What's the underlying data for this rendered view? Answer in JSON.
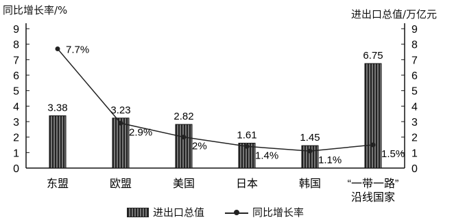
{
  "chart_data": {
    "type": "bar",
    "left_axis_title": "同比增长率/%",
    "right_axis_title": "进出口总值/万亿元",
    "categories": [
      "东盟",
      "欧盟",
      "美国",
      "日本",
      "韩国",
      "“一带一路”\n沿线国家"
    ],
    "series": [
      {
        "name": "进出口总值",
        "type": "bar",
        "axis": "right",
        "values": [
          3.38,
          3.23,
          2.82,
          1.61,
          1.45,
          6.75
        ],
        "labels": [
          "3.38",
          "3.23",
          "2.82",
          "1.61",
          "1.45",
          "6.75"
        ]
      },
      {
        "name": "同比增长率",
        "type": "line",
        "axis": "left",
        "values": [
          7.7,
          2.9,
          2.0,
          1.4,
          1.1,
          1.5
        ],
        "labels": [
          "7.7%",
          "2.9%",
          "2%",
          "1.4%",
          "1.1%",
          "1.5%"
        ]
      }
    ],
    "ylim_left": [
      0,
      9
    ],
    "ylim_right": [
      0,
      9
    ],
    "yticks": [
      0,
      1,
      2,
      3,
      4,
      5,
      6,
      7,
      8,
      9
    ],
    "legend": {
      "bar_label": "进出口总值",
      "line_label": "同比增长率"
    },
    "colors": {
      "bar": "#333333",
      "line": "#222222"
    }
  }
}
